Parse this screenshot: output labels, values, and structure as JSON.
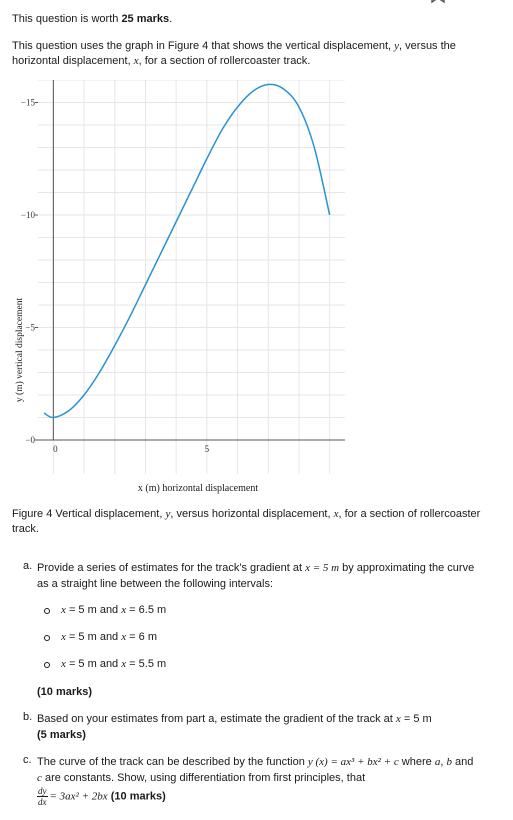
{
  "header": {
    "worth_prefix": "This question is worth ",
    "worth_marks": "25 marks",
    "worth_suffix": "."
  },
  "intro": {
    "part1": "This question uses the graph in Figure 4 that shows the vertical displacement, ",
    "var_y": "y",
    "part2": ", versus the horizontal displacement, ",
    "var_x": "x",
    "part3": ", for a section of rollercoaster track."
  },
  "chart_data": {
    "type": "line",
    "title": "",
    "xlabel": "x (m) horizontal displacement",
    "ylabel": "y (m) vertical displacement",
    "xlim": [
      -0.5,
      9.5
    ],
    "ylim": [
      0,
      16
    ],
    "x_ticks": [
      "0",
      "5"
    ],
    "y_ticks": [
      "0",
      "5",
      "10",
      "15"
    ],
    "grid": true,
    "line_color": "#2b93d1",
    "series": [
      {
        "x": [
          -0.3,
          0,
          0.5,
          1,
          1.5,
          2,
          2.5,
          3,
          3.5,
          4,
          4.5,
          5,
          5.5,
          6,
          6.5,
          7,
          7.5,
          8,
          8.5,
          9
        ],
        "y": [
          1.2,
          1.0,
          1.3,
          2.0,
          3.0,
          4.2,
          5.5,
          6.9,
          8.3,
          9.7,
          11.1,
          12.5,
          13.8,
          14.8,
          15.5,
          15.8,
          15.6,
          14.8,
          13.0,
          10.0
        ]
      }
    ]
  },
  "figure_caption": {
    "part1": "Figure 4  Vertical displacement, ",
    "var_y": "y",
    "part2": ", versus horizontal displacement, ",
    "var_x": "x",
    "part3": ", for a section of rollercoaster track."
  },
  "question_a": {
    "label": "a.",
    "text1": "Provide a series of estimates for the track's gradient at ",
    "math": "x = 5 m",
    "text2": " by approximating the curve as a straight line between the following intervals:",
    "intervals": [
      {
        "var1": "x",
        "text1": " = 5 m and ",
        "var2": "x",
        "text2": " = 6.5 m"
      },
      {
        "var1": "x",
        "text1": " = 5 m and ",
        "var2": "x",
        "text2": " = 6 m"
      },
      {
        "var1": "x",
        "text1": " = 5 m and ",
        "var2": "x",
        "text2": " = 5.5 m"
      }
    ],
    "marks": "(10 marks)"
  },
  "question_b": {
    "label": "b.",
    "text1": "Based on your estimates from part a, estimate the gradient of the track at ",
    "var": "x",
    "text2": " = 5 m",
    "marks": "(5 marks)"
  },
  "question_c": {
    "label": "c.",
    "text1": "The curve of the track can be described by the function ",
    "function": "y (x) = ax³ + bx² + c",
    "text2": " where ",
    "var_a": "a",
    "text3": ", ",
    "var_b": "b",
    "text4": " and ",
    "var_c": "c",
    "text5": " are constants. Show, using differentiation from first principles, that",
    "frac_num": "dy",
    "frac_den": "dx",
    "equation": "= 3ax² + 2bx",
    "marks": "(10 marks)"
  }
}
